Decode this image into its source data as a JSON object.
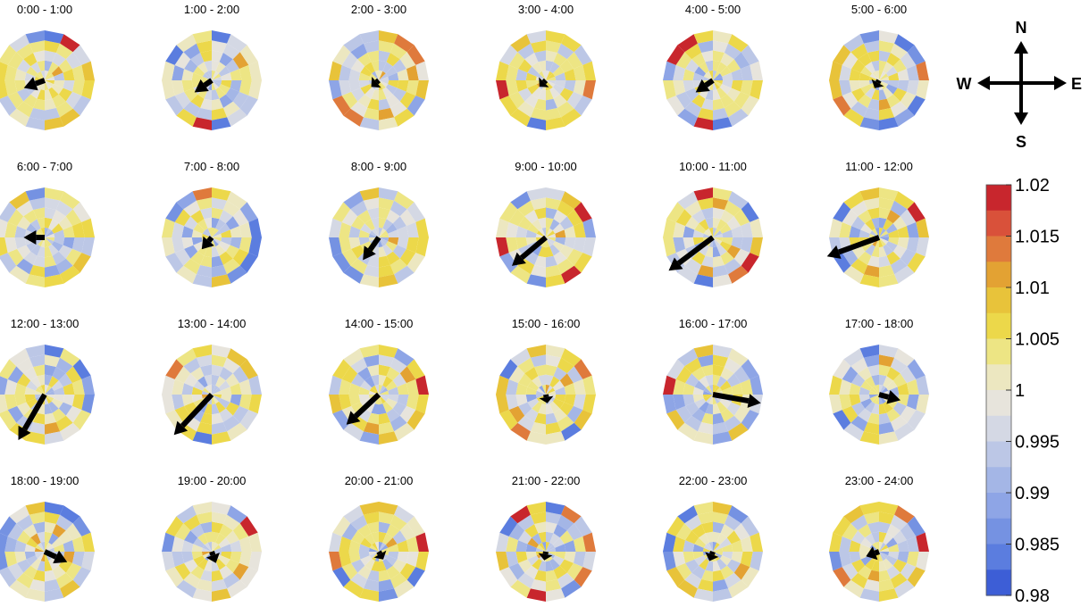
{
  "chart_data": {
    "type": "heatmap",
    "description_kind": "polar heatmap small multiples with mean-direction arrows",
    "panels": [
      {
        "title": "0:00 - 1:00",
        "arrow": {
          "direction_deg": 250,
          "magnitude": 0.4
        },
        "seed": 3
      },
      {
        "title": "1:00 - 2:00",
        "arrow": {
          "direction_deg": 235,
          "magnitude": 0.38
        },
        "seed": 7
      },
      {
        "title": "2:00 - 3:00",
        "arrow": {
          "direction_deg": 230,
          "magnitude": 0.18
        },
        "seed": 11
      },
      {
        "title": "3:00 - 4:00",
        "arrow": {
          "direction_deg": 225,
          "magnitude": 0.12
        },
        "seed": 13
      },
      {
        "title": "4:00 - 5:00",
        "arrow": {
          "direction_deg": 235,
          "magnitude": 0.38
        },
        "seed": 17
      },
      {
        "title": "5:00 - 6:00",
        "arrow": {
          "direction_deg": 210,
          "magnitude": 0.12
        },
        "seed": 19
      },
      {
        "title": "6:00 - 7:00",
        "arrow": {
          "direction_deg": 270,
          "magnitude": 0.38
        },
        "seed": 23
      },
      {
        "title": "7:00 - 8:00",
        "arrow": {
          "direction_deg": 220,
          "magnitude": 0.28
        },
        "seed": 29
      },
      {
        "title": "8:00 - 9:00",
        "arrow": {
          "direction_deg": 215,
          "magnitude": 0.5
        },
        "seed": 31
      },
      {
        "title": "9:00 - 10:00",
        "arrow": {
          "direction_deg": 230,
          "magnitude": 0.8
        },
        "seed": 37
      },
      {
        "title": "10:00 - 11:00",
        "arrow": {
          "direction_deg": 233,
          "magnitude": 1.0
        },
        "seed": 41
      },
      {
        "title": "11:00 - 12:00",
        "arrow": {
          "direction_deg": 250,
          "magnitude": 1.0
        },
        "seed": 43
      },
      {
        "title": "12:00 - 13:00",
        "arrow": {
          "direction_deg": 210,
          "magnitude": 0.95
        },
        "seed": 47
      },
      {
        "title": "13:00 - 14:00",
        "arrow": {
          "direction_deg": 223,
          "magnitude": 1.0
        },
        "seed": 53
      },
      {
        "title": "14:00 - 15:00",
        "arrow": {
          "direction_deg": 227,
          "magnitude": 0.8
        },
        "seed": 59
      },
      {
        "title": "15:00 - 16:00",
        "arrow": {
          "direction_deg": 170,
          "magnitude": 0.12
        },
        "seed": 61
      },
      {
        "title": "16:00 - 17:00",
        "arrow": {
          "direction_deg": 100,
          "magnitude": 0.88
        },
        "seed": 67
      },
      {
        "title": "17:00 - 18:00",
        "arrow": {
          "direction_deg": 105,
          "magnitude": 0.4
        },
        "seed": 71
      },
      {
        "title": "18:00 - 19:00",
        "arrow": {
          "direction_deg": 115,
          "magnitude": 0.45
        },
        "seed": 73
      },
      {
        "title": "19:00 - 20:00",
        "arrow": {
          "direction_deg": 160,
          "magnitude": 0.22
        },
        "seed": 79
      },
      {
        "title": "20:00 - 21:00",
        "arrow": {
          "direction_deg": 150,
          "magnitude": 0.12
        },
        "seed": 83
      },
      {
        "title": "21:00 - 22:00",
        "arrow": {
          "direction_deg": 190,
          "magnitude": 0.12
        },
        "seed": 89
      },
      {
        "title": "22:00 - 23:00",
        "arrow": {
          "direction_deg": 200,
          "magnitude": 0.18
        },
        "seed": 97
      },
      {
        "title": "23:00 - 24:00",
        "arrow": {
          "direction_deg": 250,
          "magnitude": 0.25
        },
        "seed": 101
      }
    ],
    "colorbar": {
      "min": 0.98,
      "max": 1.02,
      "tick_labels": [
        "1.02",
        "1.015",
        "1.01",
        "1.005",
        "1",
        "0.995",
        "0.99",
        "0.985",
        "0.98"
      ],
      "tick_values": [
        1.02,
        1.015,
        1.01,
        1.005,
        1.0,
        0.995,
        0.99,
        0.985,
        0.98
      ],
      "colors_high_to_low": [
        "#c8262d",
        "#d9513a",
        "#df7a3c",
        "#e3a233",
        "#e8c33a",
        "#ecd84a",
        "#ede584",
        "#ece7c0",
        "#e7e4dc",
        "#d4d8e4",
        "#bcc7e6",
        "#a4b6e6",
        "#8ea5e6",
        "#7592e2",
        "#5b7ddf",
        "#3d5ed6"
      ]
    },
    "compass": {
      "north": "N",
      "south": "S",
      "east": "E",
      "west": "W"
    },
    "rings": 5,
    "sectors": 16
  }
}
